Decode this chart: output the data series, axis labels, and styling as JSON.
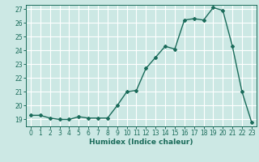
{
  "x": [
    0,
    1,
    2,
    3,
    4,
    5,
    6,
    7,
    8,
    9,
    10,
    11,
    12,
    13,
    14,
    15,
    16,
    17,
    18,
    19,
    20,
    21,
    22,
    23
  ],
  "y": [
    19.3,
    19.3,
    19.1,
    19.0,
    19.0,
    19.2,
    19.1,
    19.1,
    19.1,
    20.0,
    21.0,
    21.1,
    22.7,
    23.5,
    24.3,
    24.1,
    26.2,
    26.3,
    26.2,
    27.1,
    26.9,
    24.3,
    21.0,
    18.8
  ],
  "xlabel": "Humidex (Indice chaleur)",
  "ylim_min": 18.5,
  "ylim_max": 27.3,
  "xlim_min": -0.5,
  "xlim_max": 23.5,
  "yticks": [
    19,
    20,
    21,
    22,
    23,
    24,
    25,
    26,
    27
  ],
  "xticks": [
    0,
    1,
    2,
    3,
    4,
    5,
    6,
    7,
    8,
    9,
    10,
    11,
    12,
    13,
    14,
    15,
    16,
    17,
    18,
    19,
    20,
    21,
    22,
    23
  ],
  "line_color": "#1a6b5a",
  "bg_color": "#cce8e4",
  "grid_color": "#ffffff",
  "marker": "D",
  "markersize": 2.0,
  "linewidth": 1.0,
  "tick_fontsize": 5.5,
  "xlabel_fontsize": 6.5
}
